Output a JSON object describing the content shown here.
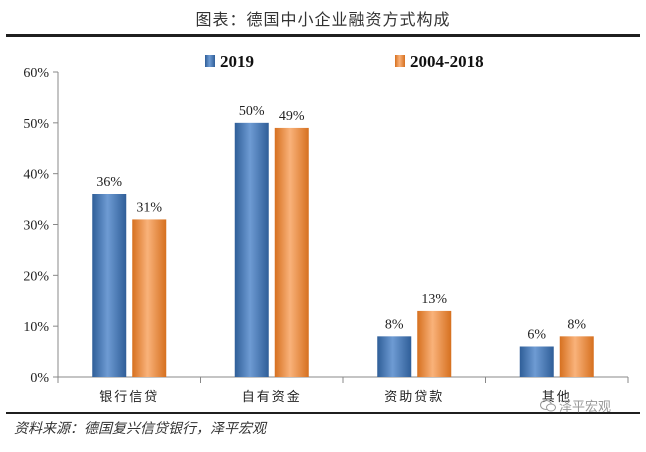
{
  "header": {
    "title": "图表：德国中小企业融资方式构成"
  },
  "footer": {
    "source": "资料来源：德国复兴信贷银行，泽平宏观",
    "watermark": "泽平宏观"
  },
  "chart_data": {
    "type": "bar",
    "title": "图表：德国中小企业融资方式构成",
    "categories": [
      "银行信贷",
      "自有资金",
      "资助贷款",
      "其他"
    ],
    "series": [
      {
        "name": "2019",
        "values": [
          36,
          50,
          8,
          6
        ],
        "labels": [
          "36%",
          "50%",
          "8%",
          "6%"
        ],
        "color": "#4f81bd"
      },
      {
        "name": "2004-2018",
        "values": [
          31,
          49,
          13,
          8
        ],
        "labels": [
          "31%",
          "49%",
          "13%",
          "8%"
        ],
        "color": "#f79646"
      }
    ],
    "yticks": [
      "0%",
      "10%",
      "20%",
      "30%",
      "40%",
      "50%",
      "60%"
    ],
    "ylim": [
      0,
      60
    ],
    "legend": "top",
    "grid": false
  }
}
